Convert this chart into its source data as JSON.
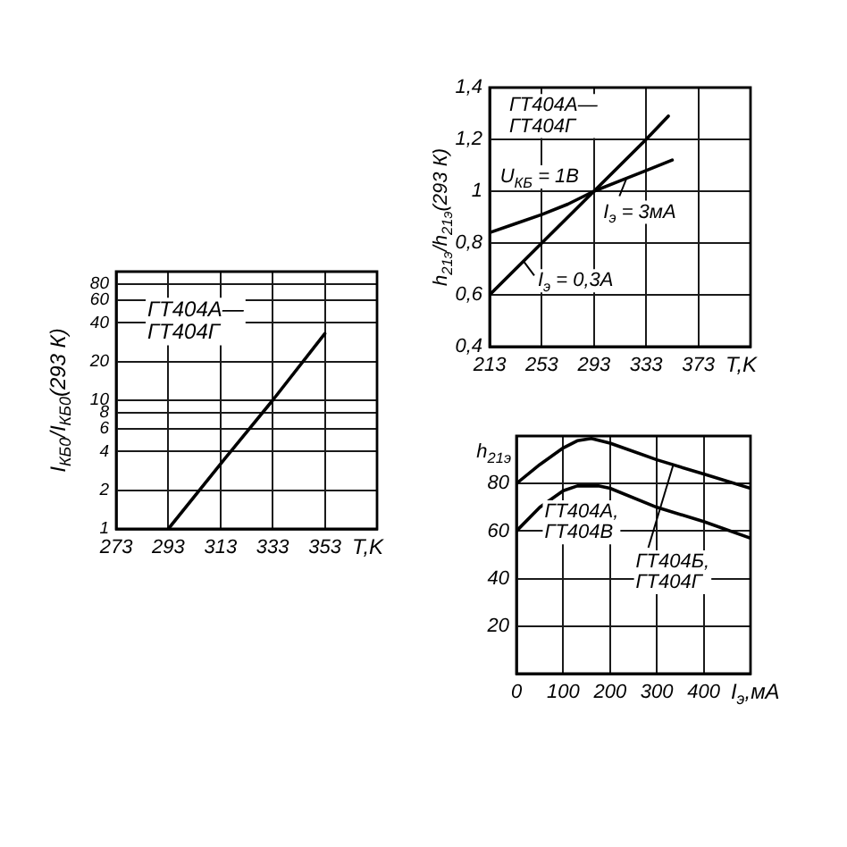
{
  "chart_data": [
    {
      "type": "line",
      "xlabel": "T,K",
      "ylabel": "I$_{КБ0}$/I$_{КБ0}$(293 К)",
      "annotations": [
        "ГТ404А—\nГТ404Г"
      ],
      "x": [
        293,
        313,
        333,
        353
      ],
      "series": [
        {
          "color": "#000000",
          "values": [
            1,
            3.2,
            10,
            33
          ]
        }
      ],
      "xlim": [
        273,
        373
      ],
      "xticks": [
        273,
        293,
        313,
        333,
        353
      ],
      "ylim": [
        1,
        100
      ],
      "yticks": [
        1,
        2,
        4,
        6,
        8,
        10,
        20,
        40,
        60,
        80
      ],
      "log": "y",
      "grid": true,
      "legend": false,
      "marker": "none"
    },
    {
      "type": "line",
      "xlabel": "T,K",
      "ylabel": "h$_{21э}$/h$_{21э}$(293 К)",
      "annotations": [
        "ГТ404А—\nГТ404Г",
        "U$_{КБ}$ = 1В",
        {
          "text": "I$_{э}$ = 3мА",
          "x": 318,
          "y": 1.05
        },
        {
          "text": "I$_{э}$ = 0,3А",
          "x": 239,
          "y": 0.73
        }
      ],
      "series": [
        {
          "color": "#000000",
          "x": [
            213,
            233,
            253,
            273,
            293,
            313,
            333,
            353
          ],
          "values": [
            0.84,
            0.875,
            0.91,
            0.95,
            1.0,
            1.04,
            1.08,
            1.12
          ]
        },
        {
          "color": "#000000",
          "x": [
            213,
            253,
            293,
            333,
            350
          ],
          "values": [
            0.6,
            0.8,
            1.0,
            1.2,
            1.29
          ]
        }
      ],
      "xlim": [
        213,
        413
      ],
      "xticks": [
        213,
        253,
        293,
        333,
        373
      ],
      "ylim": [
        0.4,
        1.4
      ],
      "yticks": [
        {
          "value": 0.4,
          "label": "0,4"
        },
        {
          "value": 0.6,
          "label": "0,6"
        },
        {
          "value": 0.8,
          "label": "0,8"
        },
        1,
        {
          "value": 1.2,
          "label": "1,2"
        },
        {
          "value": 1.4,
          "label": "1,4"
        }
      ],
      "grid": true,
      "legend": false,
      "marker": "none"
    },
    {
      "type": "line",
      "xlabel": "I$_{э}$,мА",
      "ylabel": "h$_{21э}$",
      "series": [
        {
          "name": "ГТ404Б,\nГТ404Г",
          "color": "#000000",
          "x": [
            0,
            50,
            100,
            130,
            160,
            200,
            300,
            400,
            500
          ],
          "values": [
            80,
            88,
            95,
            98,
            99,
            97,
            90,
            84,
            78
          ]
        },
        {
          "name": "ГТ404А,\nГТ404В",
          "color": "#000000",
          "x": [
            0,
            50,
            100,
            130,
            175,
            200,
            300,
            400,
            500
          ],
          "values": [
            60,
            70,
            77,
            79,
            79,
            78,
            70,
            64,
            57
          ]
        }
      ],
      "xlim": [
        0,
        500
      ],
      "xticks": [
        0,
        100,
        200,
        300,
        400
      ],
      "ylim": [
        0,
        100
      ],
      "yticks": [
        20,
        40,
        60,
        80
      ],
      "grid": true,
      "legend": false,
      "marker": "none"
    }
  ]
}
